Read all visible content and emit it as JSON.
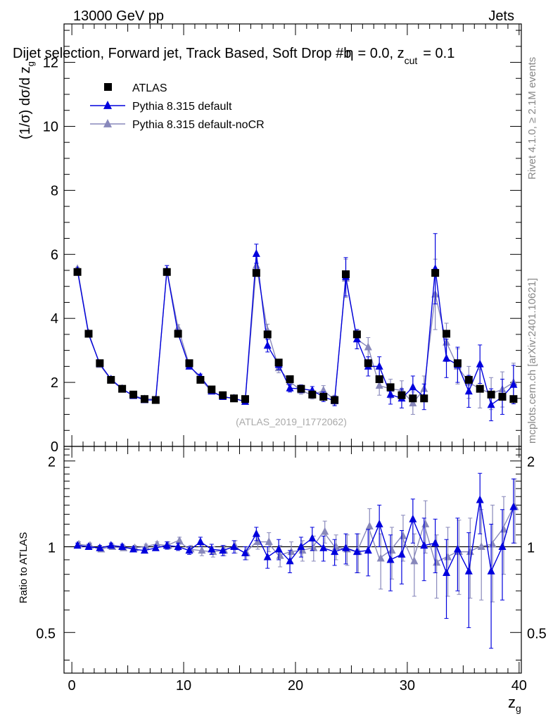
{
  "header": {
    "energy_label": "13000 GeV pp",
    "category_label": "Jets"
  },
  "chart_data": [
    {
      "panel": "main",
      "type": "line",
      "title": "Dijet selection, Forward jet, Track Based, Soft Drop #b",
      "title_tail": "= 0.0, z",
      "title_tail_sub": "cut",
      "title_tail_end": "= 0.1",
      "title_beta": "η",
      "ylabel": "(1/σ) dσ/d z",
      "ylabel_sub": "g",
      "xlabel": "z",
      "xlabel_sub": "g",
      "xlim": [
        -0.7,
        40.2
      ],
      "ylim": [
        0,
        13.2
      ],
      "yticks": [
        "0",
        "2",
        "4",
        "6",
        "8",
        "10",
        "12"
      ],
      "xticks": [
        "0",
        "10",
        "20",
        "30",
        "40"
      ],
      "analysis_tag": "(ATLAS_2019_I1772062)",
      "side_text_top": "Rivet 4.1.0, ≥ 2.1M events",
      "side_text_bottom": "mcplots.cern.ch [arXiv:2401.10621]",
      "legend": [
        {
          "name": "ATLAS",
          "color": "#000000",
          "marker": "square"
        },
        {
          "name": "Pythia 8.315 default",
          "color": "#0000dd",
          "marker": "triangle"
        },
        {
          "name": "Pythia 8.315 default-noCR",
          "color": "#8888bb",
          "marker": "triangle"
        }
      ],
      "x": [
        0.5,
        1.5,
        2.5,
        3.5,
        4.5,
        5.5,
        6.5,
        7.5,
        8.5,
        9.5,
        10.5,
        11.5,
        12.5,
        13.5,
        14.5,
        15.5,
        16.5,
        17.5,
        18.5,
        19.5,
        20.5,
        21.5,
        22.5,
        23.5,
        24.5,
        25.5,
        26.5,
        27.5,
        28.5,
        29.5,
        30.5,
        31.5,
        32.5,
        33.5,
        34.5,
        35.5,
        36.5,
        37.5,
        38.5,
        39.5
      ],
      "series": [
        {
          "name": "ATLAS",
          "values": [
            5.45,
            3.52,
            2.6,
            2.08,
            1.8,
            1.62,
            1.48,
            1.45,
            5.45,
            3.52,
            2.6,
            2.08,
            1.78,
            1.6,
            1.5,
            1.48,
            5.42,
            3.5,
            2.62,
            2.1,
            1.8,
            1.62,
            1.55,
            1.45,
            5.38,
            3.5,
            2.6,
            2.1,
            1.85,
            1.6,
            1.5,
            1.5,
            5.42,
            3.52,
            2.6,
            2.08,
            1.8,
            1.62,
            1.55,
            1.48
          ]
        },
        {
          "name": "Pythia 8.315 default",
          "values": [
            5.5,
            3.5,
            2.58,
            2.1,
            1.8,
            1.58,
            1.45,
            1.45,
            5.5,
            3.52,
            2.5,
            2.18,
            1.72,
            1.55,
            1.5,
            1.4,
            6.02,
            3.15,
            2.55,
            1.82,
            1.8,
            1.75,
            1.55,
            1.42,
            5.3,
            3.35,
            2.5,
            2.5,
            1.62,
            1.5,
            1.85,
            1.55,
            5.55,
            2.75,
            2.55,
            1.72,
            2.57,
            1.3,
            1.55,
            1.93
          ],
          "errors": [
            0.05,
            0.05,
            0.05,
            0.05,
            0.05,
            0.05,
            0.05,
            0.05,
            0.15,
            0.1,
            0.08,
            0.08,
            0.06,
            0.06,
            0.06,
            0.08,
            0.3,
            0.2,
            0.15,
            0.12,
            0.12,
            0.12,
            0.15,
            0.15,
            0.6,
            0.3,
            0.3,
            0.3,
            0.3,
            0.3,
            0.35,
            0.4,
            1.1,
            0.6,
            0.55,
            0.5,
            0.6,
            0.5,
            0.55,
            0.6
          ]
        },
        {
          "name": "Pythia 8.315 default-noCR",
          "values": [
            5.55,
            3.55,
            2.55,
            2.08,
            1.78,
            1.6,
            1.48,
            1.48,
            5.5,
            3.7,
            2.55,
            2.1,
            1.72,
            1.55,
            1.5,
            1.4,
            5.65,
            3.62,
            2.45,
            2.02,
            1.75,
            1.6,
            1.75,
            1.45,
            5.25,
            3.35,
            3.1,
            1.9,
            1.8,
            1.75,
            1.35,
            1.8,
            4.75,
            3.25,
            2.5,
            2.0,
            1.8,
            1.65,
            1.78,
            2.0
          ],
          "errors": [
            0.05,
            0.05,
            0.05,
            0.05,
            0.05,
            0.05,
            0.05,
            0.05,
            0.15,
            0.1,
            0.08,
            0.08,
            0.06,
            0.06,
            0.06,
            0.08,
            0.3,
            0.2,
            0.15,
            0.12,
            0.12,
            0.12,
            0.15,
            0.15,
            0.6,
            0.3,
            0.3,
            0.3,
            0.3,
            0.3,
            0.35,
            0.4,
            1.1,
            0.6,
            0.55,
            0.5,
            0.6,
            0.5,
            0.55,
            0.6
          ]
        }
      ]
    },
    {
      "panel": "ratio",
      "type": "line",
      "ylabel": "Ratio to ATLAS",
      "ylim": [
        0.36,
        2.25
      ],
      "yticks": [
        "0.5",
        "1",
        "2"
      ],
      "ytick_values": [
        0.5,
        1,
        2
      ],
      "reference": 1,
      "series": [
        {
          "name": "Pythia 8.315 default",
          "values": [
            1.01,
            1.0,
            0.99,
            1.01,
            1.0,
            0.98,
            0.97,
            0.99,
            1.01,
            1.0,
            0.97,
            1.04,
            0.98,
            0.97,
            1.0,
            0.95,
            1.11,
            0.92,
            0.98,
            0.89,
            1.0,
            1.07,
            0.99,
            0.96,
            0.99,
            0.96,
            0.97,
            1.2,
            0.9,
            0.94,
            1.25,
            1.01,
            1.03,
            0.81,
            0.98,
            0.82,
            1.46,
            0.82,
            1.0,
            1.38
          ],
          "errors": [
            0.02,
            0.02,
            0.02,
            0.02,
            0.02,
            0.02,
            0.02,
            0.02,
            0.03,
            0.03,
            0.03,
            0.04,
            0.04,
            0.04,
            0.05,
            0.05,
            0.06,
            0.08,
            0.08,
            0.08,
            0.08,
            0.1,
            0.1,
            0.1,
            0.12,
            0.15,
            0.18,
            0.2,
            0.2,
            0.2,
            0.22,
            0.25,
            0.22,
            0.25,
            0.28,
            0.3,
            0.35,
            0.38,
            0.35,
            0.35
          ]
        },
        {
          "name": "Pythia 8.315 default-noCR",
          "values": [
            1.02,
            1.01,
            0.98,
            1.0,
            0.99,
            0.99,
            1.0,
            1.02,
            1.01,
            1.05,
            0.98,
            0.97,
            0.96,
            0.97,
            1.0,
            0.95,
            1.04,
            1.04,
            0.93,
            0.96,
            0.97,
            0.99,
            1.13,
            1.0,
            0.98,
            0.96,
            1.18,
            0.91,
            0.97,
            1.09,
            0.89,
            1.2,
            0.88,
            0.92,
            0.96,
            0.96,
            1.0,
            1.02,
            1.15,
            1.38
          ],
          "errors": [
            0.02,
            0.02,
            0.02,
            0.02,
            0.02,
            0.02,
            0.02,
            0.02,
            0.03,
            0.03,
            0.03,
            0.04,
            0.04,
            0.04,
            0.05,
            0.05,
            0.06,
            0.08,
            0.08,
            0.08,
            0.08,
            0.1,
            0.1,
            0.1,
            0.12,
            0.15,
            0.18,
            0.2,
            0.2,
            0.2,
            0.22,
            0.25,
            0.22,
            0.25,
            0.28,
            0.3,
            0.35,
            0.38,
            0.35,
            0.35
          ]
        }
      ]
    }
  ]
}
